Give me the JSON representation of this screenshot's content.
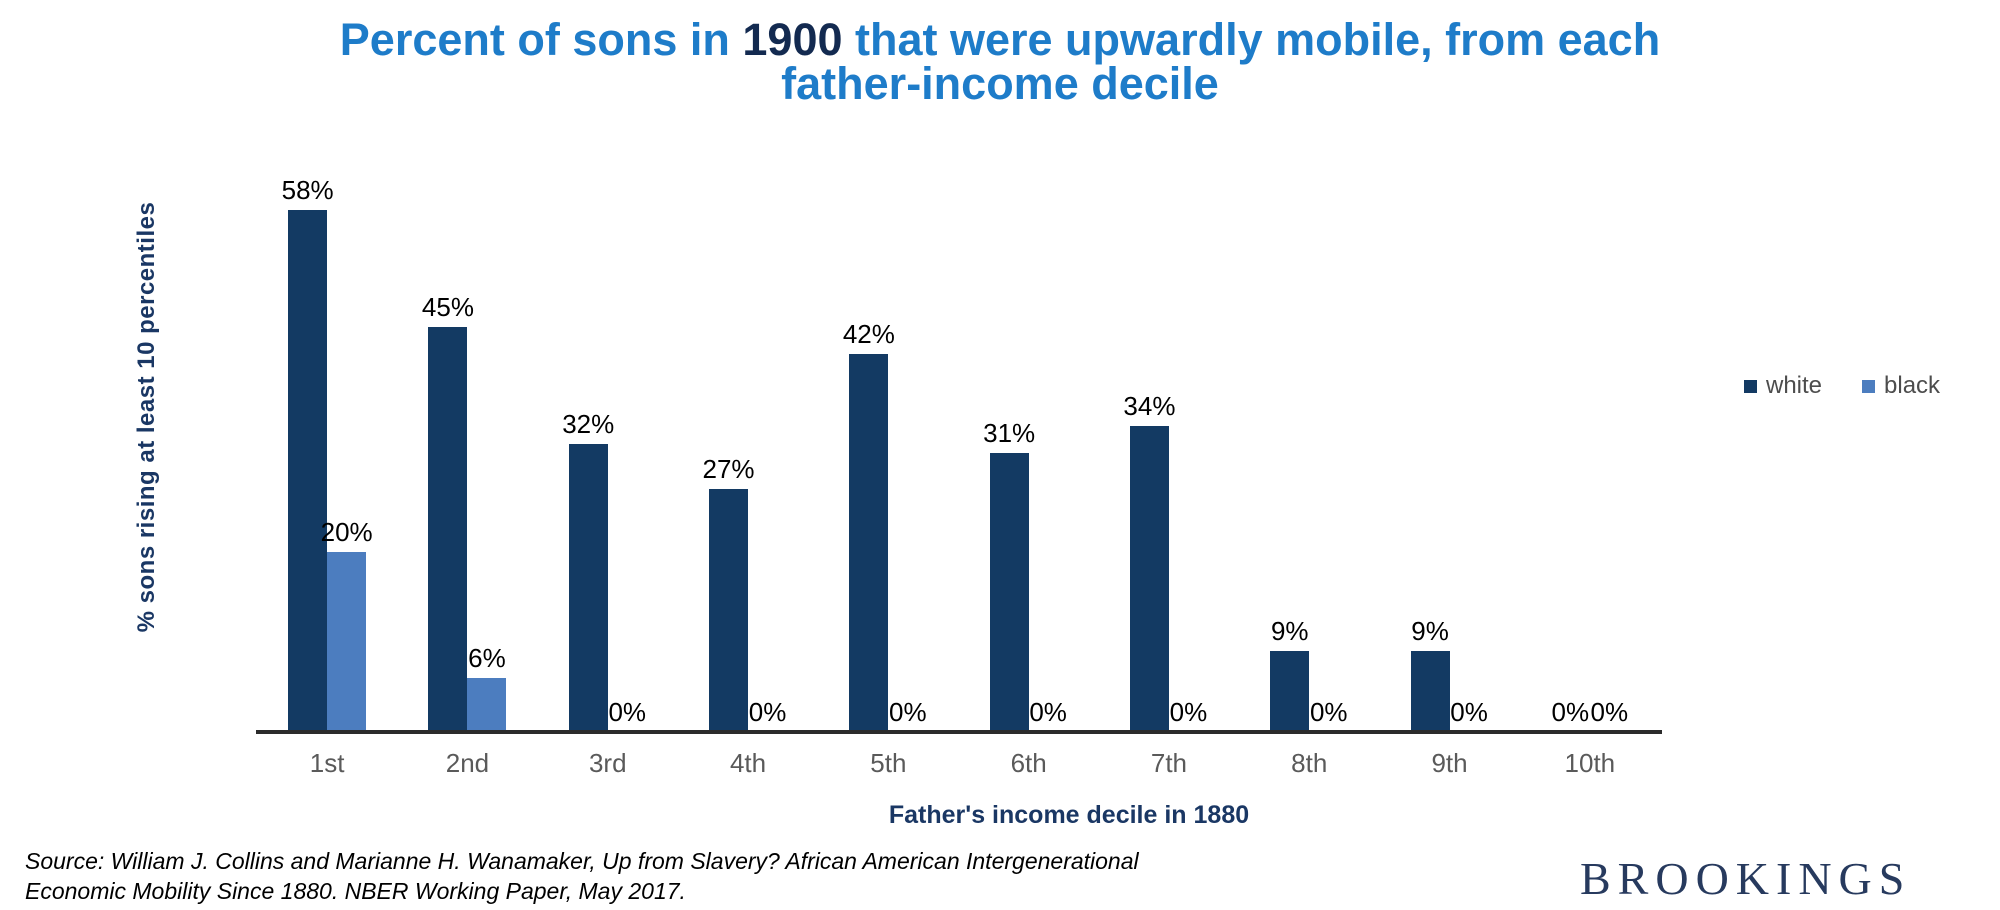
{
  "title": {
    "line1_pre": "Percent of sons in ",
    "line1_highlight": "1900",
    "line1_post": " that were upwardly mobile, from each",
    "line2": "father-income decile"
  },
  "chart_data": {
    "type": "bar",
    "title": "Percent of sons in 1900 that were upwardly mobile, from each father-income decile",
    "categories": [
      "1st",
      "2nd",
      "3rd",
      "4th",
      "5th",
      "6th",
      "7th",
      "8th",
      "9th",
      "10th"
    ],
    "series": [
      {
        "name": "white",
        "color": "#133A63",
        "values": [
          58,
          45,
          32,
          27,
          42,
          31,
          34,
          9,
          9,
          0
        ]
      },
      {
        "name": "black",
        "color": "#4C7DBF",
        "values": [
          20,
          6,
          0,
          0,
          0,
          0,
          0,
          0,
          0,
          0
        ]
      }
    ],
    "label_format": "{value}%",
    "data_labels": true,
    "xlabel": "Father's income decile in 1880",
    "ylabel": "% sons rising at least 10 percentiles",
    "ylim": [
      0,
      65
    ],
    "y_axis_visible": false,
    "grid": false,
    "legend_position": "right-middle"
  },
  "legend": {
    "items": [
      {
        "label": "white",
        "color": "#133A63"
      },
      {
        "label": "black",
        "color": "#4C7DBF"
      }
    ]
  },
  "source": {
    "line1": "Source: William J. Collins and Marianne H. Wanamaker, Up from Slavery? African American Intergenerational",
    "line2": "Economic Mobility Since 1880. NBER Working Paper, May 2017."
  },
  "logo": "BROOKINGS",
  "colors": {
    "title_blue": "#1E7CC9",
    "title_highlight_navy": "#132A50",
    "bar_white_series": "#133A63",
    "bar_black_series": "#4C7DBF",
    "axis_title_navy": "#1A3764",
    "tick_gray": "#5A5A5A",
    "axis_line": "#2B2B2B",
    "logo_navy": "#273A5E"
  }
}
